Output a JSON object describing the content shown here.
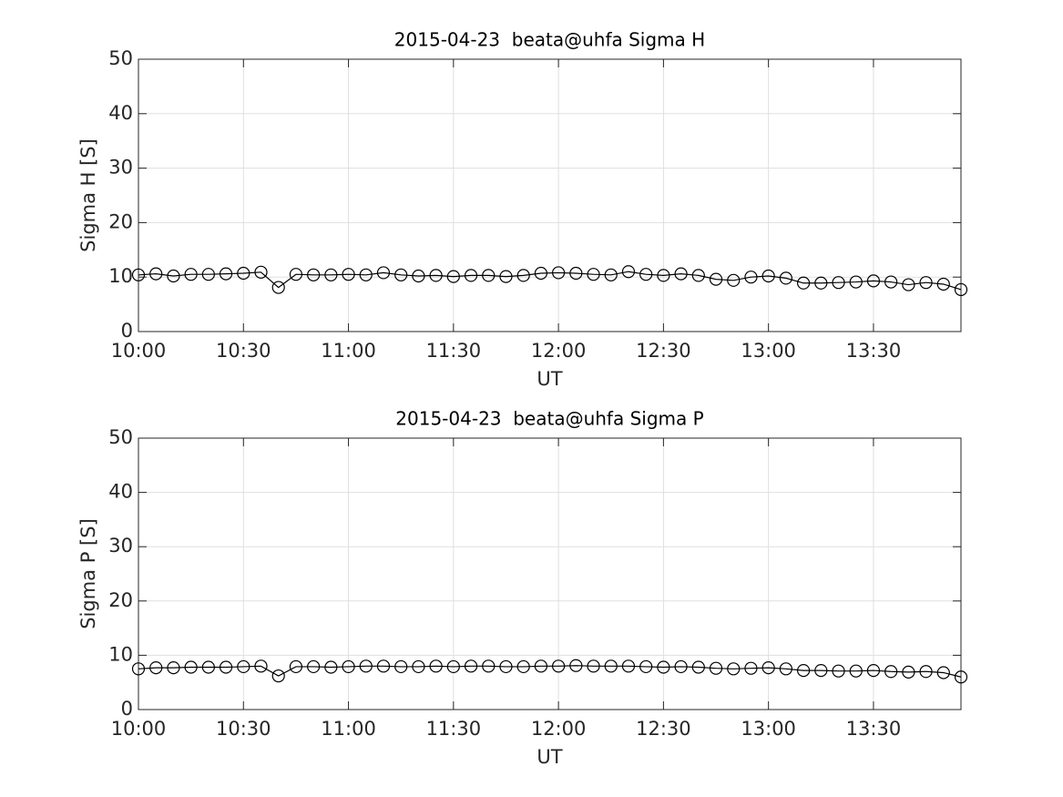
{
  "chart_data": [
    {
      "type": "line",
      "title": "2015-04-23  beata@uhfa Sigma H",
      "xlabel": "UT",
      "ylabel": "Sigma H [S]",
      "x": [
        "10:00",
        "10:05",
        "10:10",
        "10:15",
        "10:20",
        "10:25",
        "10:30",
        "10:35",
        "10:40",
        "10:45",
        "10:50",
        "10:55",
        "11:00",
        "11:05",
        "11:10",
        "11:15",
        "11:20",
        "11:25",
        "11:30",
        "11:35",
        "11:40",
        "11:45",
        "11:50",
        "11:55",
        "12:00",
        "12:05",
        "12:10",
        "12:15",
        "12:20",
        "12:25",
        "12:30",
        "12:35",
        "12:40",
        "12:45",
        "12:50",
        "12:55",
        "13:00",
        "13:05",
        "13:10",
        "13:15",
        "13:20",
        "13:25",
        "13:30",
        "13:35",
        "13:40",
        "13:45",
        "13:50",
        "13:55"
      ],
      "values": [
        10.4,
        10.6,
        10.2,
        10.5,
        10.5,
        10.6,
        10.7,
        10.9,
        8.1,
        10.5,
        10.4,
        10.4,
        10.5,
        10.4,
        10.8,
        10.4,
        10.2,
        10.3,
        10.1,
        10.3,
        10.3,
        10.1,
        10.3,
        10.7,
        10.8,
        10.7,
        10.5,
        10.4,
        11.0,
        10.5,
        10.3,
        10.6,
        10.3,
        9.6,
        9.4,
        10.0,
        10.2,
        9.8,
        8.9,
        8.9,
        9.0,
        9.1,
        9.3,
        9.1,
        8.6,
        9.0,
        8.7,
        7.7
      ],
      "color": "#000000",
      "xlim": [
        "10:00",
        "13:55"
      ],
      "xticks": [
        "10:00",
        "10:30",
        "11:00",
        "11:30",
        "12:00",
        "12:30",
        "13:00",
        "13:30"
      ],
      "ylim": [
        0,
        50
      ],
      "yticks": [
        0,
        10,
        20,
        30,
        40,
        50
      ],
      "grid": true
    },
    {
      "type": "line",
      "title": "2015-04-23  beata@uhfa Sigma P",
      "xlabel": "UT",
      "ylabel": "Sigma P [S]",
      "x": [
        "10:00",
        "10:05",
        "10:10",
        "10:15",
        "10:20",
        "10:25",
        "10:30",
        "10:35",
        "10:40",
        "10:45",
        "10:50",
        "10:55",
        "11:00",
        "11:05",
        "11:10",
        "11:15",
        "11:20",
        "11:25",
        "11:30",
        "11:35",
        "11:40",
        "11:45",
        "11:50",
        "11:55",
        "12:00",
        "12:05",
        "12:10",
        "12:15",
        "12:20",
        "12:25",
        "12:30",
        "12:35",
        "12:40",
        "12:45",
        "12:50",
        "12:55",
        "13:00",
        "13:05",
        "13:10",
        "13:15",
        "13:20",
        "13:25",
        "13:30",
        "13:35",
        "13:40",
        "13:45",
        "13:50",
        "13:55"
      ],
      "values": [
        7.5,
        7.7,
        7.7,
        7.8,
        7.8,
        7.8,
        7.9,
        8.0,
        6.2,
        7.9,
        7.9,
        7.8,
        7.9,
        8.0,
        8.0,
        7.9,
        7.9,
        8.0,
        7.9,
        8.0,
        8.0,
        7.9,
        7.9,
        8.0,
        8.0,
        8.1,
        8.0,
        8.0,
        8.0,
        7.9,
        7.8,
        7.9,
        7.8,
        7.6,
        7.5,
        7.6,
        7.7,
        7.5,
        7.2,
        7.2,
        7.1,
        7.1,
        7.2,
        7.0,
        6.9,
        7.0,
        6.8,
        6.0
      ],
      "color": "#000000",
      "xlim": [
        "10:00",
        "13:55"
      ],
      "xticks": [
        "10:00",
        "10:30",
        "11:00",
        "11:30",
        "12:00",
        "12:30",
        "13:00",
        "13:30"
      ],
      "ylim": [
        0,
        50
      ],
      "yticks": [
        0,
        10,
        20,
        30,
        40,
        50
      ],
      "grid": true
    }
  ]
}
